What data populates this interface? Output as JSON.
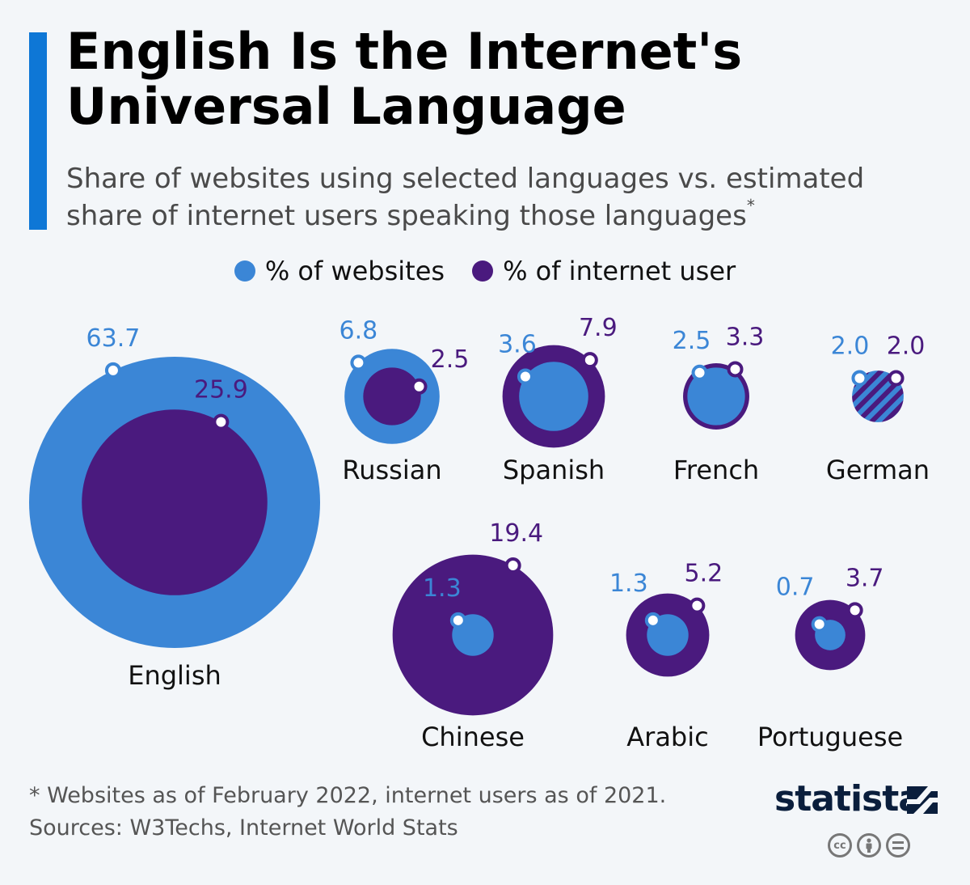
{
  "title": "English Is the Internet's Universal Language",
  "subtitle": "Share of websites using selected languages vs. estimated share of internet users speaking those languages",
  "subtitle_marker": "*",
  "legend": {
    "websites_label": "% of websites",
    "users_label": "% of internet user"
  },
  "colors": {
    "websites": "#3b86d6",
    "users": "#4a1a7e",
    "accent": "#0e77d6"
  },
  "chart_data": {
    "type": "bubble",
    "title": "English Is the Internet's Universal Language",
    "series": [
      {
        "name": "% of websites",
        "key": "websites"
      },
      {
        "name": "% of internet user",
        "key": "users"
      }
    ],
    "categories": [
      "English",
      "Russian",
      "Spanish",
      "French",
      "German",
      "Chinese",
      "Arabic",
      "Portuguese"
    ],
    "items": [
      {
        "language": "English",
        "websites": 63.7,
        "users": 25.9,
        "websites_label": "63.7",
        "users_label": "25.9"
      },
      {
        "language": "Russian",
        "websites": 6.8,
        "users": 2.5,
        "websites_label": "6.8",
        "users_label": "2.5"
      },
      {
        "language": "Spanish",
        "websites": 3.6,
        "users": 7.9,
        "websites_label": "3.6",
        "users_label": "7.9"
      },
      {
        "language": "French",
        "websites": 2.5,
        "users": 3.3,
        "websites_label": "2.5",
        "users_label": "3.3"
      },
      {
        "language": "German",
        "websites": 2.0,
        "users": 2.0,
        "websites_label": "2.0",
        "users_label": "2.0"
      },
      {
        "language": "Chinese",
        "websites": 1.3,
        "users": 19.4,
        "websites_label": "1.3",
        "users_label": "19.4"
      },
      {
        "language": "Arabic",
        "websites": 1.3,
        "users": 5.2,
        "websites_label": "1.3",
        "users_label": "5.2"
      },
      {
        "language": "Portuguese",
        "websites": 0.7,
        "users": 3.7,
        "websites_label": "0.7",
        "users_label": "3.7"
      }
    ]
  },
  "footnote": "* Websites as of February 2022, internet users as of 2021.",
  "sources": "Sources: W3Techs, Internet World Stats",
  "brand": "statista",
  "license_icons": [
    "cc-icon",
    "attribution-icon",
    "no-derivatives-icon"
  ]
}
